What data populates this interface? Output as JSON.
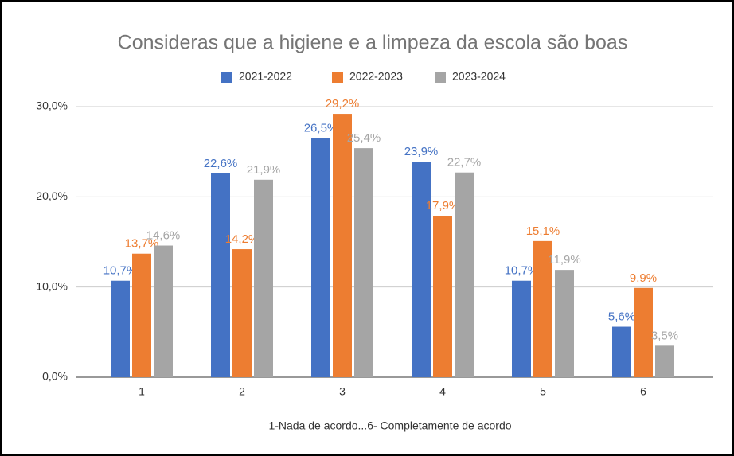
{
  "chart_data": {
    "type": "bar",
    "title": "Consideras que a higiene e a limpeza da escola são boas",
    "x_label": "1-Nada de acordo...6- Completamente de acordo",
    "categories": [
      "1",
      "2",
      "3",
      "4",
      "5",
      "6"
    ],
    "series": [
      {
        "name": "2021-2022",
        "color": "#4472c4",
        "label_color": "#4472c4",
        "values": [
          10.7,
          22.6,
          26.5,
          23.9,
          10.7,
          5.6
        ],
        "value_labels": [
          "10,7%",
          "22,6%",
          "26,5%",
          "23,9%",
          "10,7%",
          "5,6%"
        ]
      },
      {
        "name": "2022-2023",
        "color": "#ed7d31",
        "label_color": "#ed7d31",
        "values": [
          13.7,
          14.2,
          29.2,
          17.9,
          15.1,
          9.9
        ],
        "value_labels": [
          "13,7%",
          "14,2%",
          "29,2%",
          "17,9%",
          "15,1%",
          "9,9%"
        ]
      },
      {
        "name": "2023-2024",
        "color": "#a5a5a5",
        "label_color": "#a5a5a5",
        "values": [
          14.6,
          21.9,
          25.4,
          22.7,
          11.9,
          3.5
        ],
        "value_labels": [
          "14,6%",
          "21,9%",
          "25,4%",
          "22,7%",
          "11,9%",
          "3,5%"
        ]
      }
    ],
    "ylim": [
      0,
      30
    ],
    "yticks": [
      {
        "value": 0,
        "label": "0,0%"
      },
      {
        "value": 10,
        "label": "10,0%"
      },
      {
        "value": 20,
        "label": "20,0%"
      },
      {
        "value": 30,
        "label": "30,0%"
      }
    ],
    "grid": true,
    "legend": "top"
  }
}
